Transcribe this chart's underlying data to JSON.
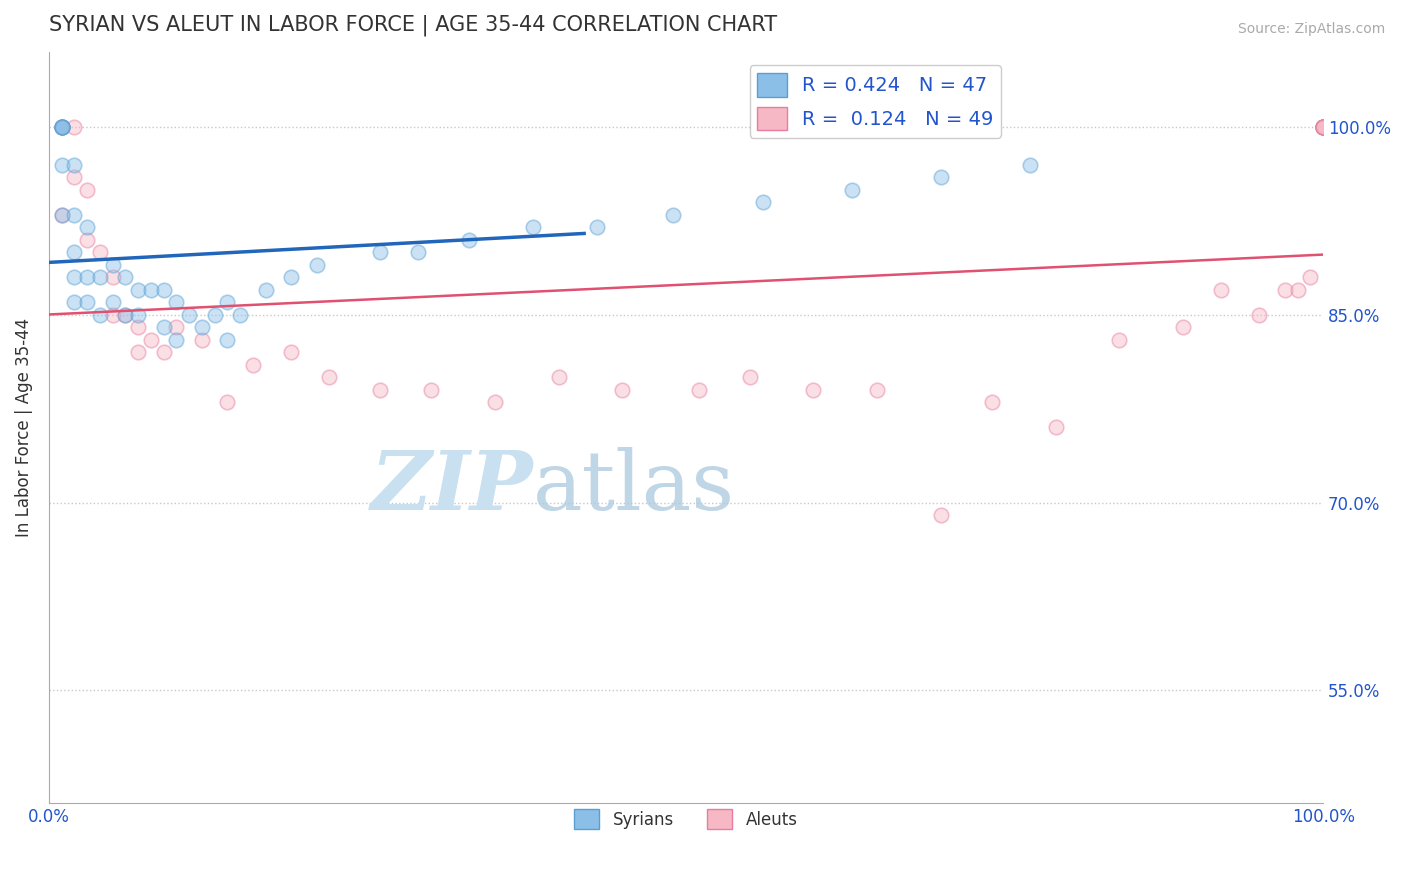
{
  "title": "SYRIAN VS ALEUT IN LABOR FORCE | AGE 35-44 CORRELATION CHART",
  "source_text": "Source: ZipAtlas.com",
  "ylabel": "In Labor Force | Age 35-44",
  "xlim": [
    0.0,
    1.0
  ],
  "ylim": [
    0.46,
    1.06
  ],
  "yticks": [
    0.55,
    0.7,
    0.85,
    1.0
  ],
  "ytick_labels": [
    "55.0%",
    "70.0%",
    "85.0%",
    "100.0%"
  ],
  "syrian_color": "#8bbfe8",
  "aleut_color": "#f5b8c4",
  "syrian_edge": "#5a9fd4",
  "aleut_edge": "#e87ca0",
  "trend_blue": "#2266bb",
  "trend_pink": "#e05070",
  "watermark_color": "#d8edf8",
  "background_color": "#ffffff",
  "grid_color": "#c8c8c8",
  "title_color": "#333333",
  "axis_color": "#aaaaaa",
  "legend_text_color": "#2255cc",
  "syrian_x": [
    0.01,
    0.01,
    0.01,
    0.01,
    0.01,
    0.01,
    0.01,
    0.02,
    0.02,
    0.02,
    0.02,
    0.02,
    0.03,
    0.03,
    0.03,
    0.04,
    0.04,
    0.05,
    0.05,
    0.06,
    0.06,
    0.07,
    0.07,
    0.08,
    0.09,
    0.09,
    0.1,
    0.1,
    0.11,
    0.12,
    0.13,
    0.14,
    0.14,
    0.15,
    0.17,
    0.19,
    0.21,
    0.26,
    0.29,
    0.33,
    0.38,
    0.43,
    0.49,
    0.56,
    0.63,
    0.7,
    0.77
  ],
  "syrian_y": [
    1.0,
    1.0,
    1.0,
    1.0,
    1.0,
    0.97,
    0.93,
    0.97,
    0.93,
    0.9,
    0.88,
    0.86,
    0.92,
    0.88,
    0.86,
    0.88,
    0.85,
    0.89,
    0.86,
    0.88,
    0.85,
    0.87,
    0.85,
    0.87,
    0.87,
    0.84,
    0.86,
    0.83,
    0.85,
    0.84,
    0.85,
    0.86,
    0.83,
    0.85,
    0.87,
    0.88,
    0.89,
    0.9,
    0.9,
    0.91,
    0.92,
    0.92,
    0.93,
    0.94,
    0.95,
    0.96,
    0.97
  ],
  "aleut_x": [
    0.01,
    0.01,
    0.01,
    0.02,
    0.02,
    0.03,
    0.03,
    0.04,
    0.05,
    0.05,
    0.06,
    0.07,
    0.07,
    0.08,
    0.09,
    0.1,
    0.12,
    0.14,
    0.16,
    0.19,
    0.22,
    0.26,
    0.3,
    0.35,
    0.4,
    0.45,
    0.51,
    0.55,
    0.6,
    0.65,
    0.7,
    0.74,
    0.79,
    0.84,
    0.89,
    0.92,
    0.95,
    0.97,
    0.98,
    0.99,
    1.0,
    1.0,
    1.0,
    1.0,
    1.0,
    1.0,
    1.0,
    1.0,
    1.0
  ],
  "aleut_y": [
    1.0,
    1.0,
    0.93,
    1.0,
    0.96,
    0.95,
    0.91,
    0.9,
    0.88,
    0.85,
    0.85,
    0.84,
    0.82,
    0.83,
    0.82,
    0.84,
    0.83,
    0.78,
    0.81,
    0.82,
    0.8,
    0.79,
    0.79,
    0.78,
    0.8,
    0.79,
    0.79,
    0.8,
    0.79,
    0.79,
    0.69,
    0.78,
    0.76,
    0.83,
    0.84,
    0.87,
    0.85,
    0.87,
    0.87,
    0.88,
    1.0,
    1.0,
    1.0,
    1.0,
    1.0,
    1.0,
    1.0,
    1.0,
    1.0
  ],
  "marker_size": 110,
  "marker_alpha": 0.45,
  "marker_lw": 1.2
}
